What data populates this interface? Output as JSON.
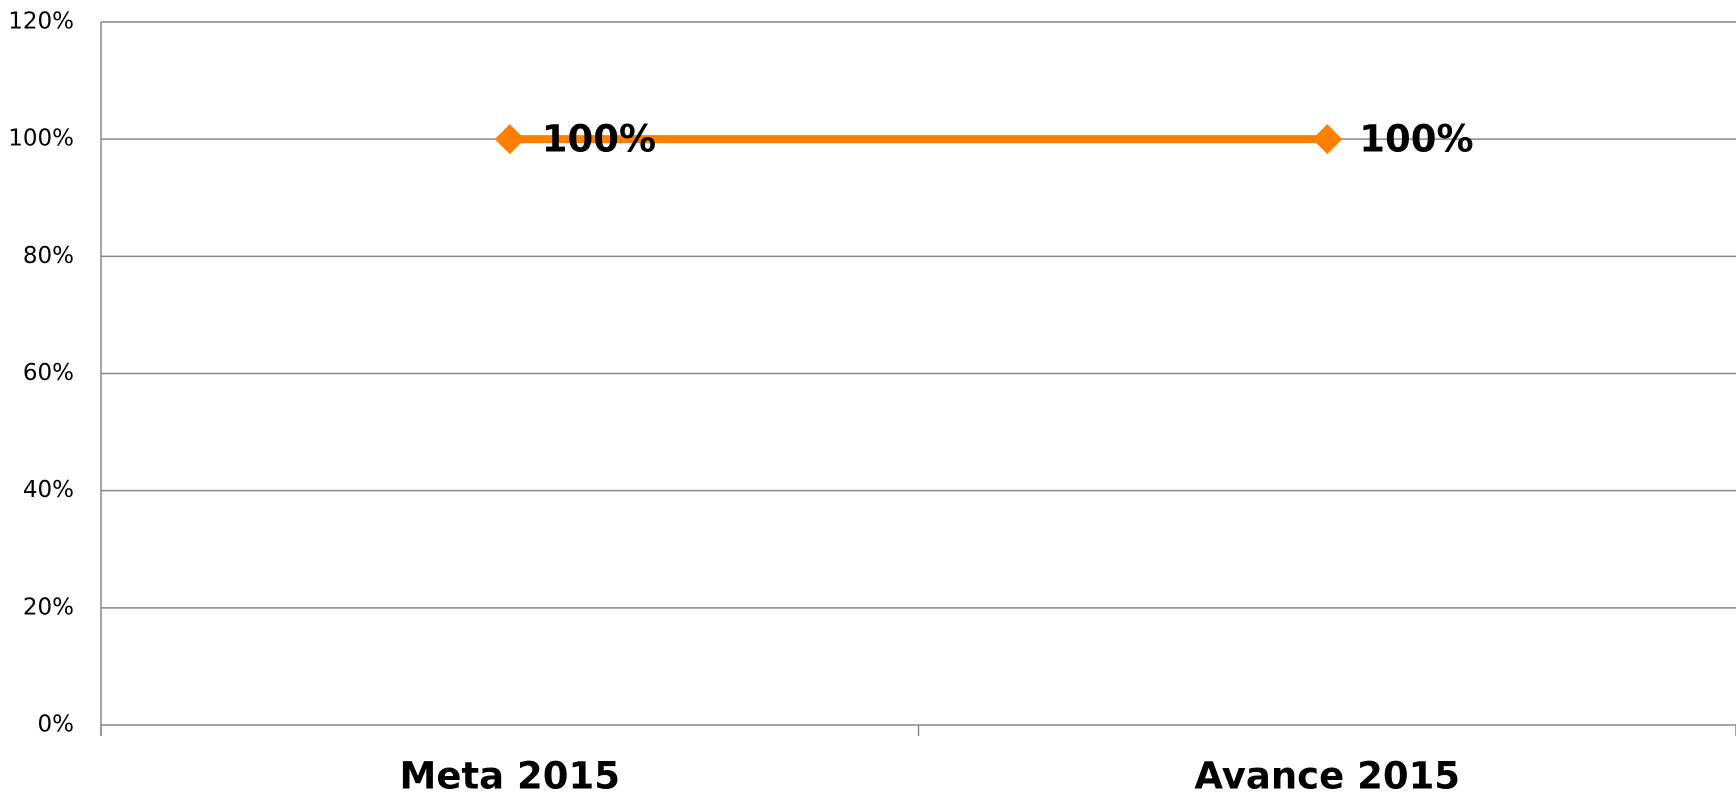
{
  "chart_data": {
    "type": "line",
    "categories": [
      "Meta 2015",
      "Avance 2015"
    ],
    "series": [
      {
        "name": null,
        "color": "#ff8000",
        "values": [
          100,
          100
        ],
        "value_labels": [
          "100%",
          "100%"
        ]
      }
    ],
    "ylim": [
      0,
      120
    ],
    "yticks": [
      {
        "value": 0,
        "label": "0%"
      },
      {
        "value": 20,
        "label": "20%"
      },
      {
        "value": 40,
        "label": "40%"
      },
      {
        "value": 60,
        "label": "60%"
      },
      {
        "value": 80,
        "label": "80%"
      },
      {
        "value": 100,
        "label": "100%"
      },
      {
        "value": 120,
        "label": "120%"
      }
    ],
    "grid": true
  }
}
